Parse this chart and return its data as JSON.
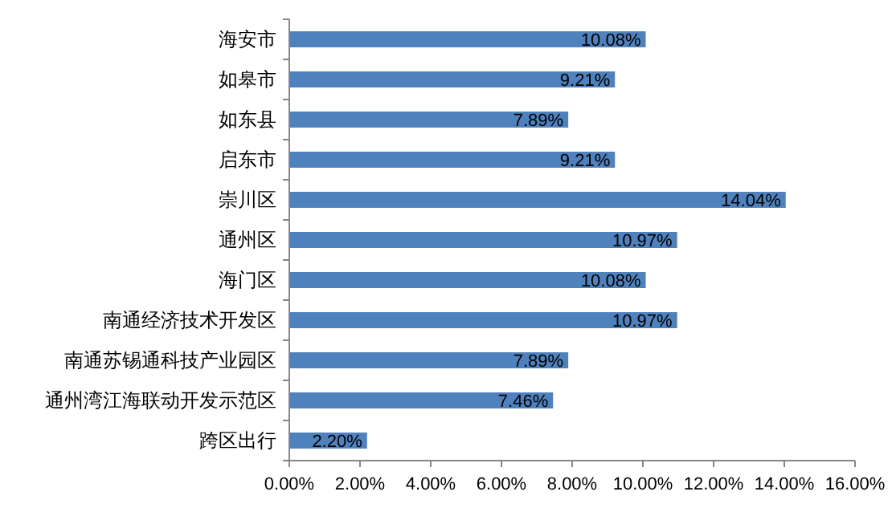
{
  "chart_data": {
    "type": "bar",
    "orientation": "horizontal",
    "categories": [
      "海安市",
      "如皋市",
      "如东县",
      "启东市",
      "崇川区",
      "通州区",
      "海门区",
      "南通经济技术开发区",
      "南通苏锡通科技产业园区",
      "通州湾江海联动开发示范区",
      "跨区出行"
    ],
    "values": [
      10.08,
      9.21,
      7.89,
      9.21,
      14.04,
      10.97,
      10.08,
      10.97,
      7.89,
      7.46,
      2.2
    ],
    "value_labels": [
      "10.08%",
      "9.21%",
      "7.89%",
      "9.21%",
      "14.04%",
      "10.97%",
      "10.08%",
      "10.97%",
      "7.89%",
      "7.46%",
      "2.20%"
    ],
    "color": "#4f81bd",
    "xlim": [
      0,
      16
    ],
    "xticks": [
      {
        "value": 0,
        "label": "0.00%"
      },
      {
        "value": 2,
        "label": "2.00%"
      },
      {
        "value": 4,
        "label": "4.00%"
      },
      {
        "value": 6,
        "label": "6.00%"
      },
      {
        "value": 8,
        "label": "8.00%"
      },
      {
        "value": 10,
        "label": "10.00%"
      },
      {
        "value": 12,
        "label": "12.00%"
      },
      {
        "value": 14,
        "label": "14.00%"
      },
      {
        "value": 16,
        "label": "16.00%"
      }
    ],
    "grid": false
  }
}
